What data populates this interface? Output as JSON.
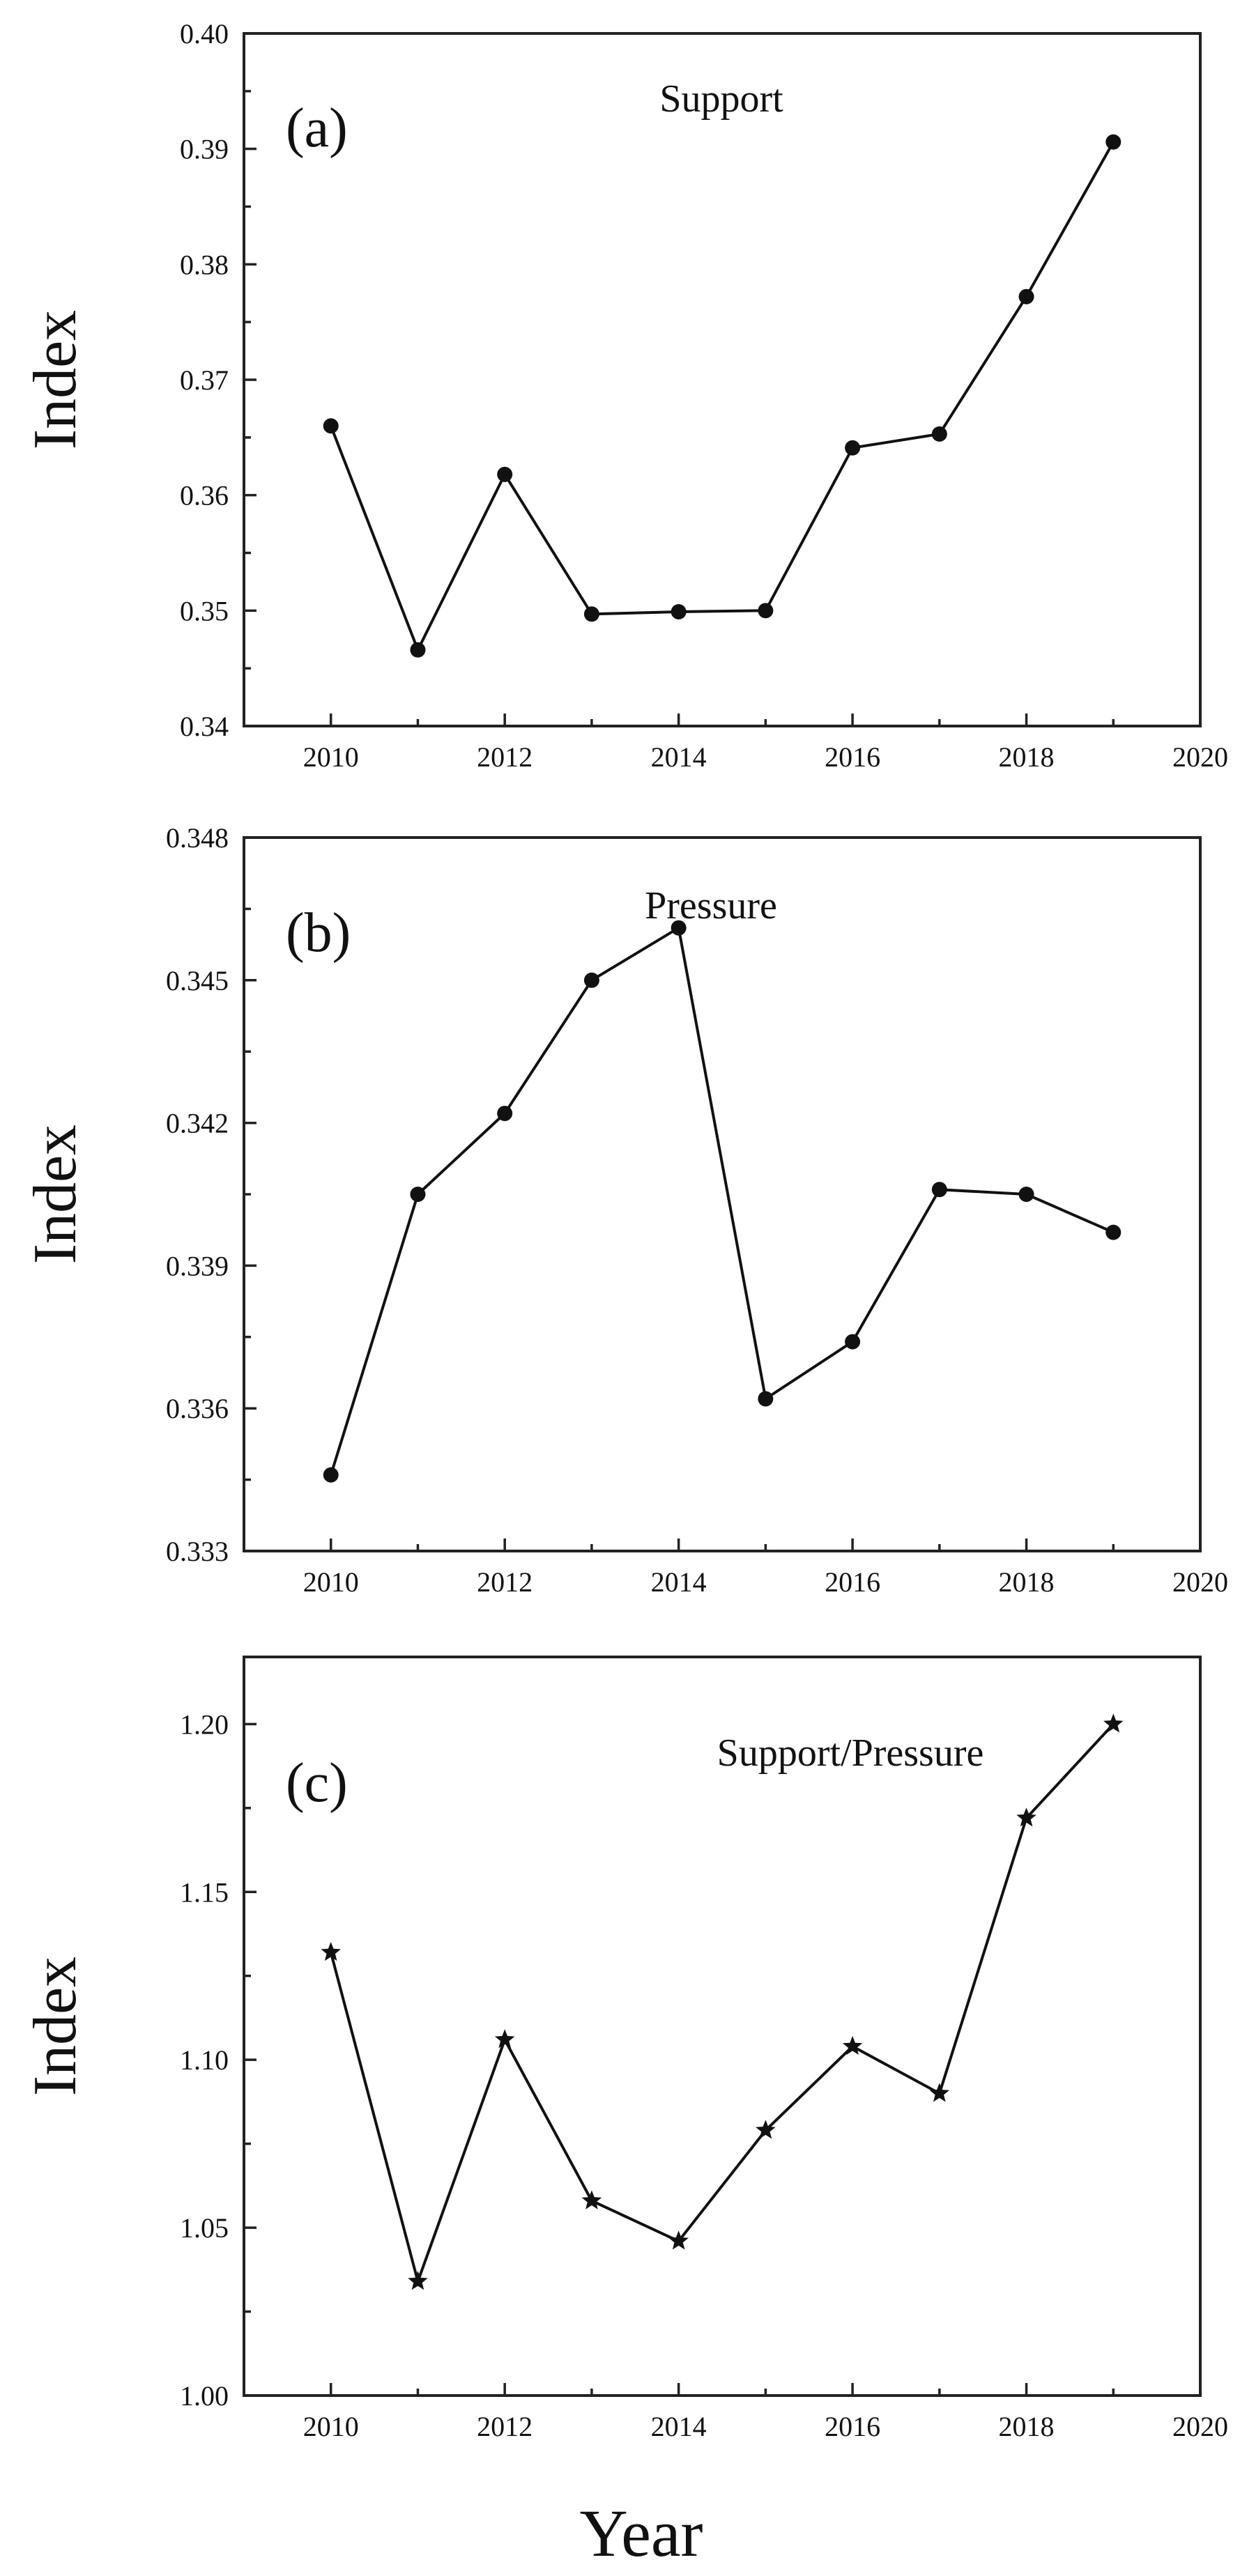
{
  "figure": {
    "xlabel": "Year"
  },
  "chart_data": [
    {
      "type": "line",
      "panel_label": "(a)",
      "title": "Support",
      "xlabel": "",
      "ylabel": "Index",
      "xlim": [
        2009,
        2020
      ],
      "ylim": [
        0.34,
        0.4
      ],
      "xticks": [
        2010,
        2012,
        2014,
        2016,
        2018,
        2020
      ],
      "xtick_labels": [
        "2010",
        "2012",
        "2014",
        "2016",
        "2018",
        "2020"
      ],
      "yticks": [
        0.34,
        0.35,
        0.36,
        0.37,
        0.38,
        0.39,
        0.4
      ],
      "ytick_labels": [
        "0.34",
        "0.35",
        "0.36",
        "0.37",
        "0.38",
        "0.39",
        "0.40"
      ],
      "marker": "circle",
      "x": [
        2010,
        2011,
        2012,
        2013,
        2014,
        2015,
        2016,
        2017,
        2018,
        2019
      ],
      "values": [
        0.366,
        0.3466,
        0.3618,
        0.3497,
        0.3499,
        0.35,
        0.3641,
        0.3653,
        0.3772,
        0.3906
      ],
      "grid": false,
      "legend": "none"
    },
    {
      "type": "line",
      "panel_label": "(b)",
      "title": "Pressure",
      "xlabel": "",
      "ylabel": "Index",
      "xlim": [
        2009,
        2020
      ],
      "ylim": [
        0.333,
        0.348
      ],
      "xticks": [
        2010,
        2012,
        2014,
        2016,
        2018,
        2020
      ],
      "xtick_labels": [
        "2010",
        "2012",
        "2014",
        "2016",
        "2018",
        "2020"
      ],
      "yticks": [
        0.333,
        0.336,
        0.339,
        0.342,
        0.345,
        0.348
      ],
      "ytick_labels": [
        "0.333",
        "0.336",
        "0.339",
        "0.342",
        "0.345",
        "0.348"
      ],
      "marker": "circle",
      "x": [
        2010,
        2011,
        2012,
        2013,
        2014,
        2015,
        2016,
        2017,
        2018,
        2019
      ],
      "values": [
        0.3346,
        0.3405,
        0.3422,
        0.345,
        0.3461,
        0.3362,
        0.3374,
        0.3406,
        0.3405,
        0.3397
      ],
      "grid": false,
      "legend": "none"
    },
    {
      "type": "line",
      "panel_label": "(c)",
      "title": "Support/Pressure",
      "xlabel": "Year",
      "ylabel": "Index",
      "xlim": [
        2009,
        2020
      ],
      "ylim": [
        1.0,
        1.22
      ],
      "xticks": [
        2010,
        2012,
        2014,
        2016,
        2018,
        2020
      ],
      "xtick_labels": [
        "2010",
        "2012",
        "2014",
        "2016",
        "2018",
        "2020"
      ],
      "yticks": [
        1.0,
        1.05,
        1.1,
        1.15,
        1.2
      ],
      "ytick_labels": [
        "1.00",
        "1.05",
        "1.10",
        "1.15",
        "1.20"
      ],
      "marker": "star",
      "x": [
        2010,
        2011,
        2012,
        2013,
        2014,
        2015,
        2016,
        2017,
        2018,
        2019
      ],
      "values": [
        1.132,
        1.034,
        1.106,
        1.058,
        1.046,
        1.079,
        1.104,
        1.09,
        1.172,
        1.2
      ],
      "grid": false,
      "legend": "none"
    }
  ]
}
